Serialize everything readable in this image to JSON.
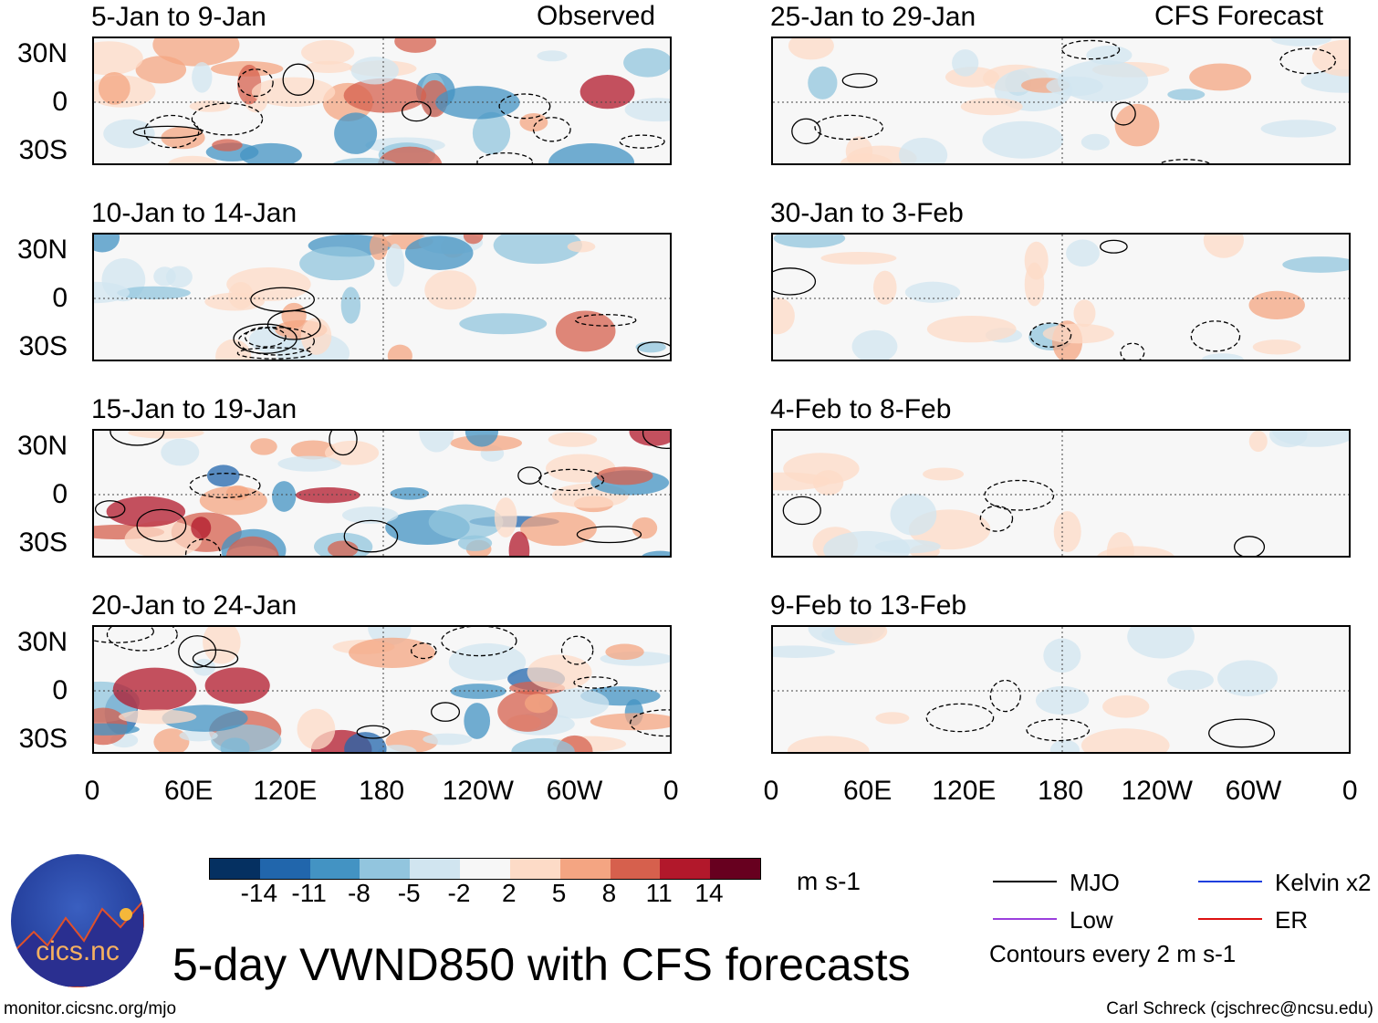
{
  "left_header": "Observed",
  "right_header": "CFS Forecast",
  "panels_left": [
    {
      "title": "5-Jan to 9-Jan",
      "intensity": 0.8
    },
    {
      "title": "10-Jan to 14-Jan",
      "intensity": 0.6
    },
    {
      "title": "15-Jan to 19-Jan",
      "intensity": 0.9
    },
    {
      "title": "20-Jan to 24-Jan",
      "intensity": 0.9
    }
  ],
  "panels_right": [
    {
      "title": "25-Jan to 29-Jan",
      "intensity": 0.45
    },
    {
      "title": "30-Jan to 3-Feb",
      "intensity": 0.3
    },
    {
      "title": "4-Feb to 8-Feb",
      "intensity": 0.2
    },
    {
      "title": "9-Feb to 13-Feb",
      "intensity": 0.15
    }
  ],
  "lat_labels": [
    "30N",
    "0",
    "30S"
  ],
  "lon_labels": [
    "0",
    "60E",
    "120E",
    "180",
    "120W",
    "60W",
    "0"
  ],
  "colorbar": {
    "colors": [
      "#053061",
      "#2166ac",
      "#4393c3",
      "#92c5de",
      "#d1e5f0",
      "#f7f7f7",
      "#fddbc7",
      "#f4a582",
      "#d6604d",
      "#b2182b",
      "#67001f"
    ],
    "labels": [
      "-14",
      "-11",
      "-8",
      "-5",
      "-2",
      "2",
      "5",
      "8",
      "11",
      "14"
    ],
    "units": "m s-1"
  },
  "legend": {
    "items": [
      {
        "label": "MJO",
        "color": "#000000"
      },
      {
        "label": "Kelvin x2",
        "color": "#1f3fdd"
      },
      {
        "label": "Low",
        "color": "#9b3fdd"
      },
      {
        "label": "ER",
        "color": "#dd1111"
      }
    ],
    "contour_note": "Contours every 2 m s-1"
  },
  "title": "5-day VWND850 with CFS forecasts",
  "logo_text": "cics.nc",
  "logo_ring_text": "Cooperative Institute for Climate and Satellites",
  "url": "monitor.cicsnc.org/mjo",
  "credit": "Carl Schreck (cjschrec@ncsu.edu)"
}
